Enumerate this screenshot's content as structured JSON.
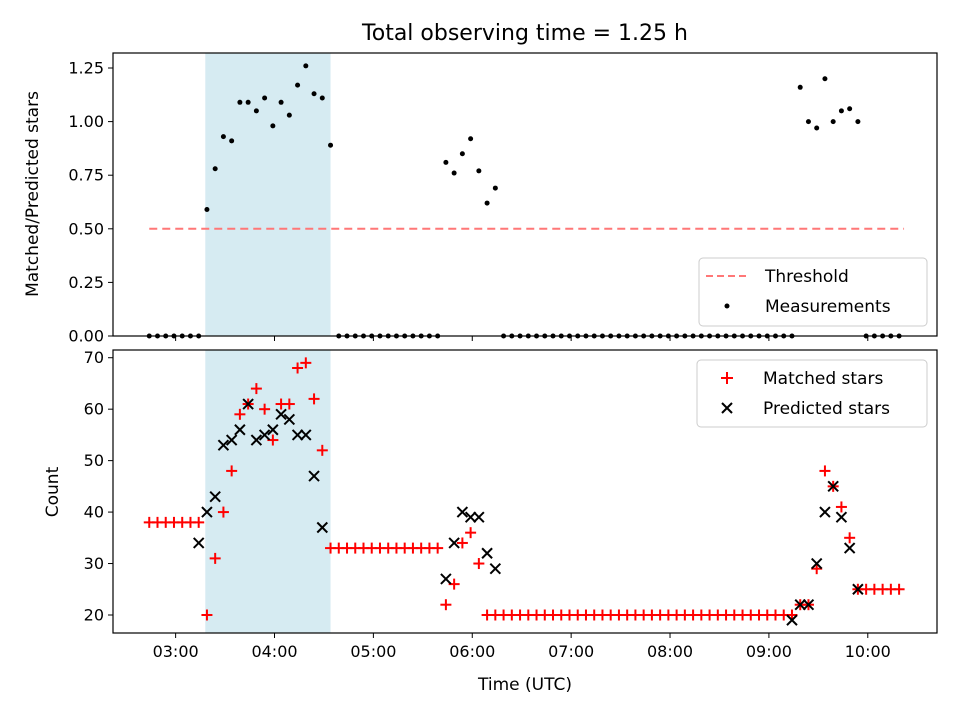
{
  "chart_data": [
    {
      "type": "scatter",
      "title": "Total observing time = 1.25 h",
      "xlabel": "",
      "ylabel": "Matched/Predicted stars",
      "xlim": [
        "02:22",
        "10:42"
      ],
      "ylim": [
        0,
        1.32
      ],
      "yticks": [
        0,
        0.25,
        0.5,
        0.75,
        1.0,
        1.25
      ],
      "ytick_labels": [
        "0.00",
        "0.25",
        "0.50",
        "0.75",
        "1.00",
        "1.25"
      ],
      "observing_window": [
        "03:18",
        "04:34"
      ],
      "threshold": {
        "name": "Threshold",
        "value": 0.5,
        "x": [
          "02:44",
          "10:22"
        ],
        "color": "#ff7777",
        "style": "dashed"
      },
      "series": [
        {
          "name": "Measurements",
          "color": "#000000",
          "points": [
            [
              "02:44",
              0
            ],
            [
              "02:49",
              0
            ],
            [
              "02:54",
              0
            ],
            [
              "02:59",
              0
            ],
            [
              "03:04",
              0
            ],
            [
              "03:09",
              0
            ],
            [
              "03:14",
              0
            ],
            [
              "03:19",
              0.59
            ],
            [
              "03:24",
              0.78
            ],
            [
              "03:29",
              0.93
            ],
            [
              "03:34",
              0.91
            ],
            [
              "03:39",
              1.09
            ],
            [
              "03:44",
              1.09
            ],
            [
              "03:49",
              1.05
            ],
            [
              "03:54",
              1.11
            ],
            [
              "03:59",
              0.98
            ],
            [
              "04:04",
              1.09
            ],
            [
              "04:09",
              1.03
            ],
            [
              "04:14",
              1.17
            ],
            [
              "04:19",
              1.26
            ],
            [
              "04:24",
              1.13
            ],
            [
              "04:29",
              1.11
            ],
            [
              "04:34",
              0.89
            ],
            [
              "04:39",
              0
            ],
            [
              "04:44",
              0
            ],
            [
              "04:49",
              0
            ],
            [
              "04:54",
              0
            ],
            [
              "04:59",
              0
            ],
            [
              "05:04",
              0
            ],
            [
              "05:09",
              0
            ],
            [
              "05:14",
              0
            ],
            [
              "05:19",
              0
            ],
            [
              "05:24",
              0
            ],
            [
              "05:29",
              0
            ],
            [
              "05:34",
              0
            ],
            [
              "05:39",
              0
            ],
            [
              "05:44",
              0.81
            ],
            [
              "05:49",
              0.76
            ],
            [
              "05:54",
              0.85
            ],
            [
              "05:59",
              0.92
            ],
            [
              "06:04",
              0.77
            ],
            [
              "06:09",
              0.62
            ],
            [
              "06:14",
              0.69
            ],
            [
              "06:19",
              0
            ],
            [
              "06:24",
              0
            ],
            [
              "06:29",
              0
            ],
            [
              "06:34",
              0
            ],
            [
              "06:39",
              0
            ],
            [
              "06:44",
              0
            ],
            [
              "06:49",
              0
            ],
            [
              "06:54",
              0
            ],
            [
              "06:59",
              0
            ],
            [
              "07:04",
              0
            ],
            [
              "07:09",
              0
            ],
            [
              "07:14",
              0
            ],
            [
              "07:19",
              0
            ],
            [
              "07:24",
              0
            ],
            [
              "07:29",
              0
            ],
            [
              "07:34",
              0
            ],
            [
              "07:39",
              0
            ],
            [
              "07:44",
              0
            ],
            [
              "07:49",
              0
            ],
            [
              "07:54",
              0
            ],
            [
              "07:59",
              0
            ],
            [
              "08:04",
              0
            ],
            [
              "08:09",
              0
            ],
            [
              "08:14",
              0
            ],
            [
              "08:19",
              0
            ],
            [
              "08:24",
              0
            ],
            [
              "08:29",
              0
            ],
            [
              "08:34",
              0
            ],
            [
              "08:39",
              0
            ],
            [
              "08:44",
              0
            ],
            [
              "08:49",
              0
            ],
            [
              "08:54",
              0
            ],
            [
              "08:59",
              0
            ],
            [
              "09:04",
              0
            ],
            [
              "09:09",
              0
            ],
            [
              "09:14",
              0
            ],
            [
              "09:19",
              1.16
            ],
            [
              "09:24",
              1.0
            ],
            [
              "09:29",
              0.97
            ],
            [
              "09:34",
              1.2
            ],
            [
              "09:39",
              1.0
            ],
            [
              "09:44",
              1.05
            ],
            [
              "09:49",
              1.06
            ],
            [
              "09:54",
              1.0
            ],
            [
              "09:59",
              0
            ],
            [
              "10:04",
              0
            ],
            [
              "10:09",
              0
            ],
            [
              "10:14",
              0
            ],
            [
              "10:19",
              0
            ]
          ]
        }
      ],
      "legend": {
        "position": "lower right",
        "entries": [
          "Threshold",
          "Measurements"
        ]
      }
    },
    {
      "type": "scatter",
      "title": "",
      "xlabel": "Time (UTC)",
      "ylabel": "Count",
      "xlim": [
        "02:22",
        "10:42"
      ],
      "ylim": [
        16.5,
        71.5
      ],
      "yticks": [
        20,
        30,
        40,
        50,
        60,
        70
      ],
      "xticks": [
        "03:00",
        "04:00",
        "05:00",
        "06:00",
        "07:00",
        "08:00",
        "09:00",
        "10:00"
      ],
      "observing_window": [
        "03:18",
        "04:34"
      ],
      "series": [
        {
          "name": "Matched stars",
          "marker": "+",
          "color": "#ff0000",
          "points": [
            [
              "02:44",
              38
            ],
            [
              "02:49",
              38
            ],
            [
              "02:54",
              38
            ],
            [
              "02:59",
              38
            ],
            [
              "03:04",
              38
            ],
            [
              "03:09",
              38
            ],
            [
              "03:14",
              38
            ],
            [
              "03:19",
              20
            ],
            [
              "03:24",
              31
            ],
            [
              "03:29",
              40
            ],
            [
              "03:34",
              48
            ],
            [
              "03:39",
              59
            ],
            [
              "03:44",
              61
            ],
            [
              "03:49",
              64
            ],
            [
              "03:54",
              60
            ],
            [
              "03:59",
              54
            ],
            [
              "04:04",
              61
            ],
            [
              "04:09",
              61
            ],
            [
              "04:14",
              68
            ],
            [
              "04:19",
              69
            ],
            [
              "04:24",
              62
            ],
            [
              "04:29",
              52
            ],
            [
              "04:34",
              33
            ],
            [
              "04:39",
              33
            ],
            [
              "04:44",
              33
            ],
            [
              "04:49",
              33
            ],
            [
              "04:54",
              33
            ],
            [
              "04:59",
              33
            ],
            [
              "05:04",
              33
            ],
            [
              "05:09",
              33
            ],
            [
              "05:14",
              33
            ],
            [
              "05:19",
              33
            ],
            [
              "05:24",
              33
            ],
            [
              "05:29",
              33
            ],
            [
              "05:34",
              33
            ],
            [
              "05:39",
              33
            ],
            [
              "05:44",
              22
            ],
            [
              "05:49",
              26
            ],
            [
              "05:54",
              34
            ],
            [
              "05:59",
              36
            ],
            [
              "06:04",
              30
            ],
            [
              "06:09",
              20
            ],
            [
              "06:14",
              20
            ],
            [
              "06:19",
              20
            ],
            [
              "06:24",
              20
            ],
            [
              "06:29",
              20
            ],
            [
              "06:34",
              20
            ],
            [
              "06:39",
              20
            ],
            [
              "06:44",
              20
            ],
            [
              "06:49",
              20
            ],
            [
              "06:54",
              20
            ],
            [
              "06:59",
              20
            ],
            [
              "07:04",
              20
            ],
            [
              "07:09",
              20
            ],
            [
              "07:14",
              20
            ],
            [
              "07:19",
              20
            ],
            [
              "07:24",
              20
            ],
            [
              "07:29",
              20
            ],
            [
              "07:34",
              20
            ],
            [
              "07:39",
              20
            ],
            [
              "07:44",
              20
            ],
            [
              "07:49",
              20
            ],
            [
              "07:54",
              20
            ],
            [
              "07:59",
              20
            ],
            [
              "08:04",
              20
            ],
            [
              "08:09",
              20
            ],
            [
              "08:14",
              20
            ],
            [
              "08:19",
              20
            ],
            [
              "08:24",
              20
            ],
            [
              "08:29",
              20
            ],
            [
              "08:34",
              20
            ],
            [
              "08:39",
              20
            ],
            [
              "08:44",
              20
            ],
            [
              "08:49",
              20
            ],
            [
              "08:54",
              20
            ],
            [
              "08:59",
              20
            ],
            [
              "09:04",
              20
            ],
            [
              "09:09",
              20
            ],
            [
              "09:14",
              20
            ],
            [
              "09:19",
              22
            ],
            [
              "09:24",
              22
            ],
            [
              "09:29",
              29
            ],
            [
              "09:34",
              48
            ],
            [
              "09:39",
              45
            ],
            [
              "09:44",
              41
            ],
            [
              "09:49",
              35
            ],
            [
              "09:54",
              25
            ],
            [
              "09:59",
              25
            ],
            [
              "10:04",
              25
            ],
            [
              "10:09",
              25
            ],
            [
              "10:14",
              25
            ],
            [
              "10:19",
              25
            ]
          ]
        },
        {
          "name": "Predicted stars",
          "marker": "x",
          "color": "#000000",
          "points": [
            [
              "03:14",
              34
            ],
            [
              "03:19",
              40
            ],
            [
              "03:24",
              43
            ],
            [
              "03:29",
              53
            ],
            [
              "03:34",
              54
            ],
            [
              "03:39",
              56
            ],
            [
              "03:44",
              61
            ],
            [
              "03:49",
              54
            ],
            [
              "03:54",
              55
            ],
            [
              "03:59",
              56
            ],
            [
              "04:04",
              59
            ],
            [
              "04:09",
              58
            ],
            [
              "04:14",
              55
            ],
            [
              "04:19",
              55
            ],
            [
              "04:24",
              47
            ],
            [
              "04:29",
              37
            ],
            [
              "05:44",
              27
            ],
            [
              "05:49",
              34
            ],
            [
              "05:54",
              40
            ],
            [
              "05:59",
              39
            ],
            [
              "06:04",
              39
            ],
            [
              "06:09",
              32
            ],
            [
              "06:14",
              29
            ],
            [
              "09:14",
              19
            ],
            [
              "09:19",
              22
            ],
            [
              "09:24",
              22
            ],
            [
              "09:29",
              30
            ],
            [
              "09:34",
              40
            ],
            [
              "09:39",
              45
            ],
            [
              "09:44",
              39
            ],
            [
              "09:49",
              33
            ],
            [
              "09:54",
              25
            ]
          ]
        }
      ],
      "legend": {
        "position": "upper right",
        "entries": [
          "Matched stars",
          "Predicted stars"
        ]
      }
    }
  ]
}
